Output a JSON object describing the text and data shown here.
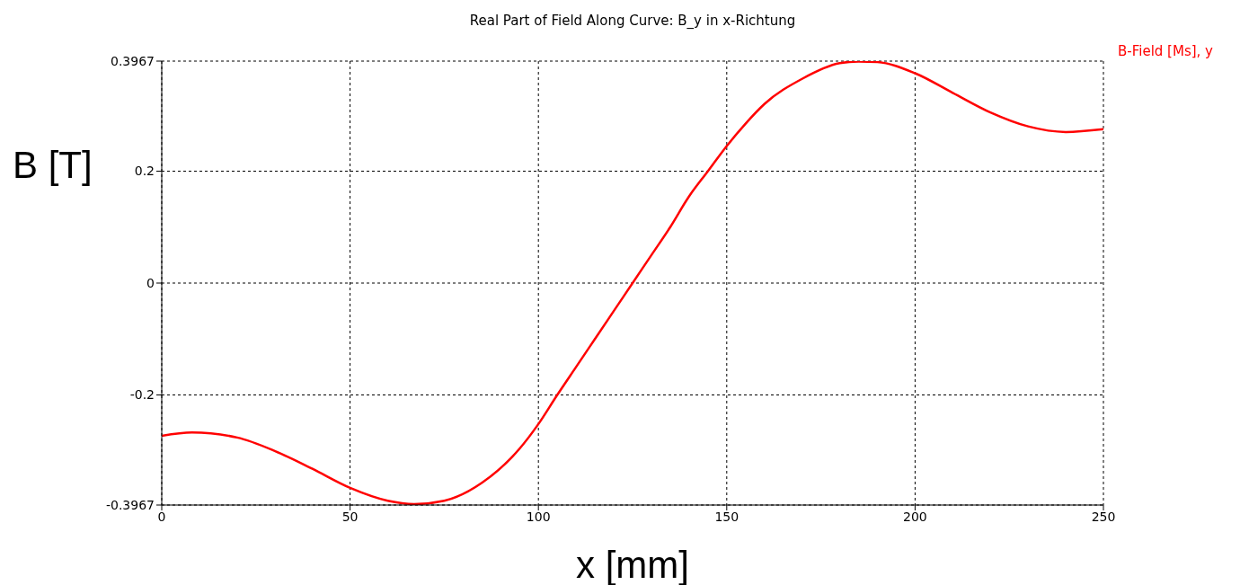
{
  "chart_data": {
    "type": "line",
    "title": "Real Part of Field Along Curve: B_y in x-Richtung",
    "xlabel": "x [mm]",
    "ylabel": "B [T]",
    "x": [
      0,
      8,
      20,
      30,
      40,
      50,
      60,
      67,
      75,
      85,
      95,
      100,
      105,
      110,
      115,
      120,
      125,
      130,
      135,
      140,
      145,
      150,
      155,
      160,
      170,
      180,
      185,
      190,
      200,
      210,
      220,
      230,
      240,
      250
    ],
    "series": [
      {
        "name": "B-Field [Ms], y",
        "color": "#ff0000",
        "values": [
          -0.273,
          -0.267,
          -0.276,
          -0.3,
          -0.332,
          -0.366,
          -0.389,
          -0.395,
          -0.389,
          -0.357,
          -0.296,
          -0.252,
          -0.2,
          -0.15,
          -0.1,
          -0.05,
          0,
          0.05,
          0.1,
          0.155,
          0.2,
          0.245,
          0.285,
          0.32,
          0.365,
          0.393,
          0.396,
          0.395,
          0.375,
          0.34,
          0.305,
          0.28,
          0.27,
          0.275
        ]
      }
    ],
    "xlim": [
      0,
      250
    ],
    "xticks": [
      0,
      50,
      100,
      150,
      200,
      250
    ],
    "ylim": [
      -0.3967,
      0.3967
    ],
    "yticks": [
      -0.3967,
      -0.2,
      0,
      0.2,
      0.3967
    ],
    "grid": true,
    "legend": "top right",
    "marker": "none",
    "line_style": "solid"
  }
}
